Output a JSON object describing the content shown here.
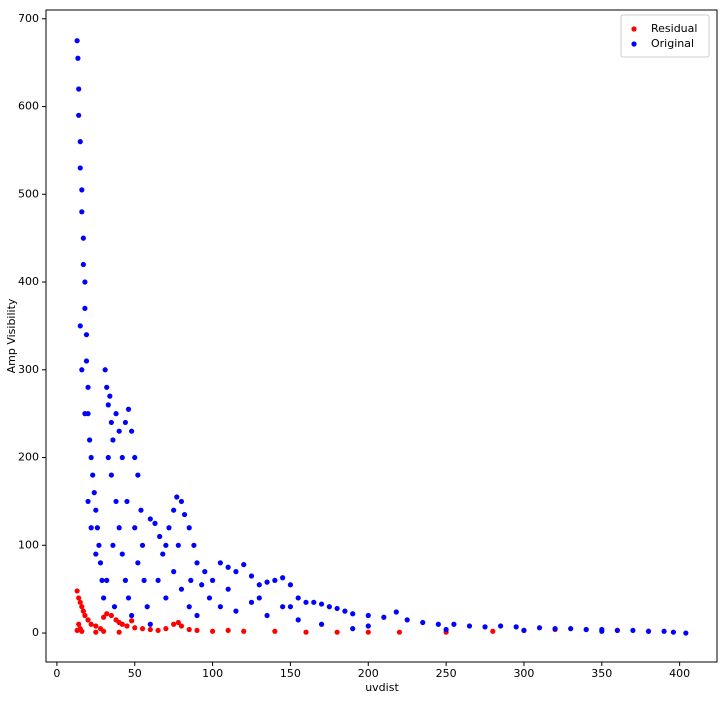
{
  "chart_data": {
    "type": "scatter",
    "x_label": "uvdist",
    "y_label": "Amp Visibility",
    "xlim": [
      -7,
      424
    ],
    "ylim": [
      -33,
      710
    ],
    "xticks": [
      0,
      50,
      100,
      150,
      200,
      250,
      300,
      350,
      400
    ],
    "yticks": [
      0,
      100,
      200,
      300,
      400,
      500,
      600,
      700
    ],
    "grid": false,
    "legend": "upper right",
    "series": [
      {
        "name": "Residual",
        "color": "#ff0000",
        "x": [
          13,
          14,
          15,
          16,
          17,
          18,
          14,
          15,
          16,
          20,
          22,
          25,
          28,
          30,
          32,
          35,
          38,
          40,
          42,
          45,
          48,
          50,
          55,
          60,
          65,
          70,
          75,
          78,
          80,
          85,
          90,
          100,
          110,
          120,
          140,
          160,
          180,
          200,
          220,
          250,
          280,
          300,
          320,
          340,
          360,
          380,
          30,
          40,
          25,
          13
        ],
        "values": [
          48,
          40,
          35,
          30,
          25,
          20,
          10,
          5,
          2,
          15,
          10,
          8,
          5,
          18,
          22,
          20,
          15,
          12,
          10,
          8,
          14,
          6,
          5,
          4,
          3,
          5,
          10,
          12,
          8,
          4,
          3,
          2,
          3,
          2,
          2,
          1,
          1,
          1,
          1,
          1,
          2,
          3,
          4,
          4,
          3,
          2,
          2,
          1,
          1,
          3
        ]
      },
      {
        "name": "Original",
        "color": "#0000ff",
        "x": [
          13,
          13.5,
          14,
          14,
          15,
          15,
          16,
          16,
          17,
          17,
          18,
          18,
          19,
          19,
          20,
          20,
          21,
          22,
          23,
          24,
          25,
          26,
          27,
          28,
          29,
          30,
          22,
          25,
          20,
          18,
          16,
          15,
          31,
          32,
          33,
          34,
          35,
          36,
          38,
          40,
          42,
          44,
          46,
          48,
          50,
          35,
          38,
          40,
          42,
          44,
          46,
          48,
          33,
          36,
          32,
          37,
          45,
          50,
          52,
          54,
          55,
          56,
          58,
          60,
          52,
          60,
          63,
          66,
          68,
          70,
          72,
          75,
          77,
          80,
          82,
          85,
          88,
          90,
          65,
          70,
          75,
          80,
          85,
          90,
          78,
          86,
          93,
          95,
          98,
          100,
          105,
          110,
          115,
          120,
          125,
          130,
          135,
          140,
          145,
          150,
          155,
          160,
          105,
          115,
          125,
          135,
          145,
          155,
          110,
          130,
          150,
          165,
          170,
          175,
          180,
          185,
          190,
          200,
          210,
          218,
          225,
          235,
          245,
          255,
          265,
          275,
          285,
          295,
          310,
          320,
          330,
          340,
          350,
          360,
          370,
          380,
          390,
          396,
          404,
          200,
          250,
          300,
          350,
          170,
          190
        ],
        "values": [
          675,
          655,
          620,
          590,
          560,
          530,
          505,
          480,
          450,
          420,
          400,
          370,
          340,
          310,
          280,
          250,
          220,
          200,
          180,
          160,
          140,
          120,
          100,
          80,
          60,
          40,
          120,
          90,
          150,
          250,
          300,
          350,
          300,
          280,
          260,
          270,
          240,
          220,
          250,
          230,
          200,
          240,
          255,
          230,
          200,
          180,
          150,
          120,
          90,
          60,
          40,
          20,
          200,
          100,
          60,
          30,
          150,
          120,
          180,
          140,
          100,
          60,
          30,
          10,
          80,
          130,
          125,
          110,
          90,
          100,
          120,
          140,
          155,
          150,
          135,
          120,
          100,
          80,
          60,
          40,
          70,
          50,
          30,
          20,
          100,
          60,
          55,
          70,
          40,
          60,
          80,
          75,
          70,
          78,
          65,
          55,
          58,
          60,
          63,
          55,
          40,
          35,
          30,
          25,
          35,
          20,
          30,
          15,
          50,
          40,
          30,
          35,
          33,
          30,
          28,
          25,
          22,
          20,
          18,
          24,
          15,
          12,
          10,
          10,
          8,
          7,
          8,
          7,
          6,
          5,
          5,
          4,
          4,
          3,
          3,
          2,
          2,
          1,
          0,
          8,
          4,
          3,
          2,
          10,
          5
        ]
      }
    ]
  }
}
